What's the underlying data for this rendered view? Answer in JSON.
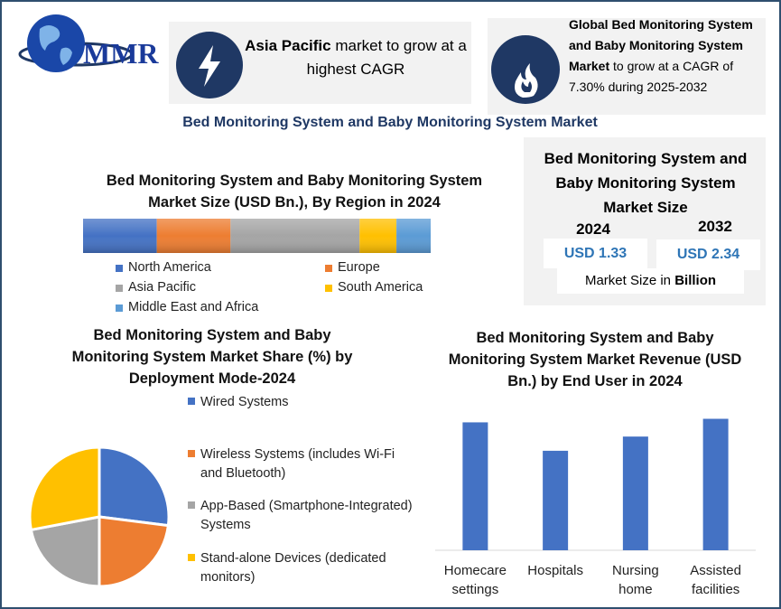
{
  "logo": "MMR",
  "callouts": [
    {
      "bold": "Asia Pacific",
      "text": " market to grow at a highest CAGR"
    },
    {
      "bold": "Global Bed Monitoring System and Baby Monitoring System Market",
      "text": " to grow at a CAGR of 7.30% during 2025-2032"
    }
  ],
  "title": "Bed Monitoring System and Baby Monitoring System Market",
  "market_size": {
    "title": "Bed Monitoring System and Baby Monitoring System Market Size",
    "years": [
      "2024",
      "2032"
    ],
    "values": [
      "USD 1.33",
      "USD 2.34"
    ],
    "note": "Market Size in",
    "note_bold": "Billion"
  },
  "chart_data": [
    {
      "type": "stacked_bar",
      "title": "Bed Monitoring System and Baby Monitoring System Market Size (USD Bn.), By Region in 2024",
      "series": [
        {
          "name": "North America",
          "color": "#4472c4",
          "values": [
            0.28
          ]
        },
        {
          "name": "Europe",
          "color": "#ed7d31",
          "values": [
            0.28
          ]
        },
        {
          "name": "Asia Pacific",
          "color": "#a5a5a5",
          "values": [
            0.49
          ]
        },
        {
          "name": "South America",
          "color": "#ffc000",
          "values": [
            0.14
          ]
        },
        {
          "name": "Middle East and Africa",
          "color": "#5b9bd5",
          "values": [
            0.13
          ]
        }
      ]
    },
    {
      "type": "pie",
      "title": "Bed Monitoring System and Baby Monitoring System Market Share (%) by Deployment Mode-2024",
      "categories": [
        "Wired Systems",
        "Wireless Systems (includes Wi-Fi and Bluetooth)",
        "App-Based (Smartphone-Integrated) Systems",
        "Stand-alone Devices (dedicated monitors)"
      ],
      "values": [
        27,
        23,
        22,
        28
      ],
      "colors": [
        "#4472c4",
        "#ed7d31",
        "#a5a5a5",
        "#ffc000"
      ]
    },
    {
      "type": "bar",
      "title": "Bed Monitoring System and Baby Monitoring System Market Revenue (USD Bn.) by End User in 2024",
      "categories": [
        "Homecare settings",
        "Hospitals",
        "Nursing home",
        "Assisted facilities"
      ],
      "values": [
        0.36,
        0.28,
        0.32,
        0.37
      ],
      "color": "#4472c4"
    }
  ]
}
